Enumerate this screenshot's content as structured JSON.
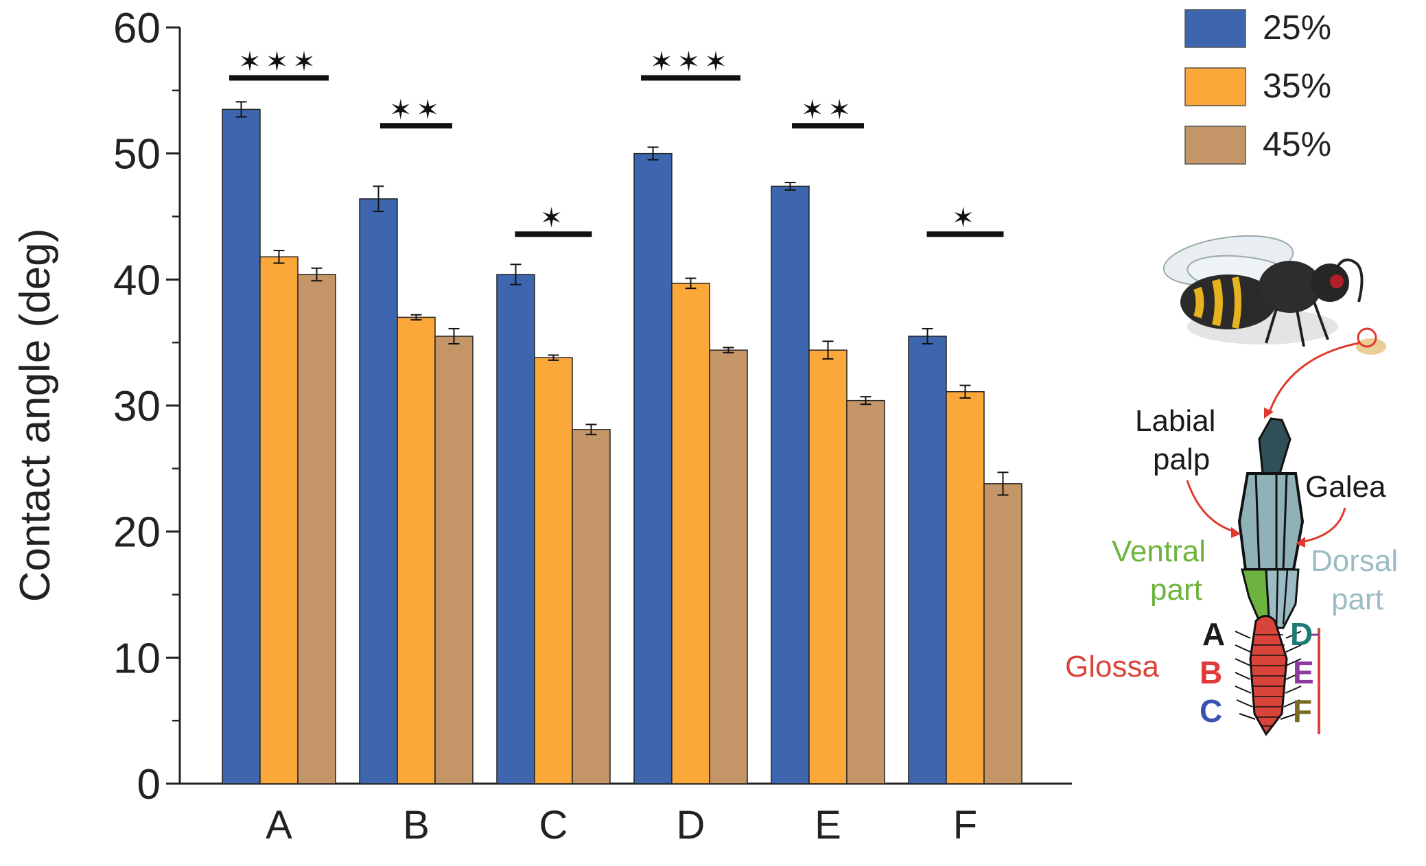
{
  "chart_data": {
    "type": "bar",
    "title": "",
    "xlabel": "",
    "ylabel": "Contact angle (deg)",
    "ylim": [
      0,
      60
    ],
    "yticks": [
      0,
      10,
      20,
      30,
      40,
      50,
      60
    ],
    "grid": false,
    "legend_position": "top-right",
    "categories": [
      "A",
      "B",
      "C",
      "D",
      "E",
      "F"
    ],
    "series": [
      {
        "name": "25%",
        "color": "#3E66AE",
        "values": [
          53.5,
          46.4,
          40.4,
          50.0,
          47.4,
          35.5
        ],
        "errors": [
          0.6,
          1.0,
          0.8,
          0.5,
          0.3,
          0.6
        ]
      },
      {
        "name": "35%",
        "color": "#FBA83A",
        "values": [
          41.8,
          37.0,
          33.8,
          39.7,
          34.4,
          31.1
        ],
        "errors": [
          0.5,
          0.2,
          0.2,
          0.4,
          0.7,
          0.5
        ]
      },
      {
        "name": "45%",
        "color": "#C49566",
        "values": [
          40.4,
          35.5,
          28.1,
          34.4,
          30.4,
          23.8
        ],
        "errors": [
          0.5,
          0.6,
          0.4,
          0.2,
          0.3,
          0.9
        ]
      }
    ],
    "significance": [
      {
        "category": "A",
        "label": "✶✶✶",
        "level": 56
      },
      {
        "category": "B",
        "label": "✶✶",
        "level": 52.2
      },
      {
        "category": "C",
        "label": "✶",
        "level": 43.6
      },
      {
        "category": "D",
        "label": "✶✶✶",
        "level": 56
      },
      {
        "category": "E",
        "label": "✶✶",
        "level": 52.2
      },
      {
        "category": "F",
        "label": "✶",
        "level": 43.6
      }
    ]
  },
  "diagram": {
    "labels": {
      "labial_palp_line1": "Labial",
      "labial_palp_line2": "palp",
      "galea": "Galea",
      "ventral_line1": "Ventral",
      "ventral_line2": "part",
      "dorsal_line1": "Dorsal",
      "dorsal_line2": "part",
      "glossa": "Glossa"
    },
    "regions_left": [
      {
        "label": "A",
        "color": "#1a1a1a"
      },
      {
        "label": "B",
        "color": "#E23A3A"
      },
      {
        "label": "C",
        "color": "#3A52B0"
      }
    ],
    "regions_right": [
      {
        "label": "D",
        "color": "#1E7B74"
      },
      {
        "label": "E",
        "color": "#8E3BA0"
      },
      {
        "label": "F",
        "color": "#7A6A1E"
      }
    ],
    "colors": {
      "ventral": "#6DB33F",
      "dorsal": "#9BBCC4",
      "glossa": "#D9443A",
      "arrow": "#E03A2E"
    }
  }
}
